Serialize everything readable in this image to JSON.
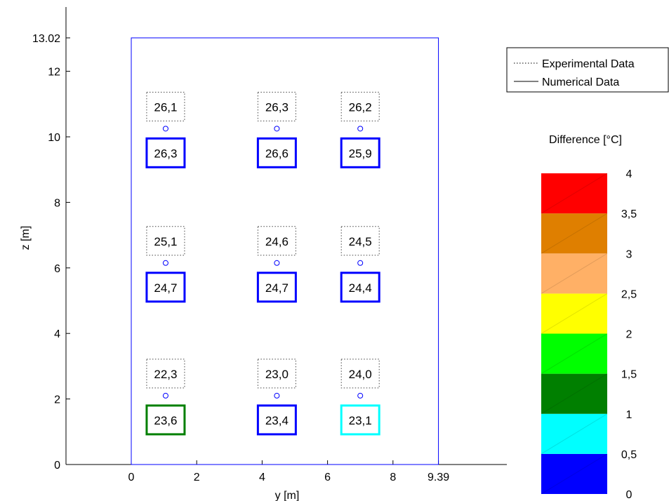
{
  "chart_data": {
    "type": "scatter",
    "xlabel": "y [m]",
    "ylabel": "z [m]",
    "xlim": [
      -2,
      11.5
    ],
    "ylim": [
      0,
      13.8
    ],
    "x_ticks": [
      "0",
      "2",
      "4",
      "6",
      "8",
      "9.39"
    ],
    "x_tick_values": [
      0,
      2,
      4,
      6,
      8,
      9.39
    ],
    "y_ticks": [
      "0",
      "2",
      "4",
      "6",
      "8",
      "10",
      "12",
      "13.02"
    ],
    "y_tick_values": [
      0,
      2,
      4,
      6,
      8,
      10,
      12,
      13.02
    ],
    "room_outline": {
      "y": [
        0,
        9.39
      ],
      "z": [
        0,
        13.02
      ]
    },
    "probes": [
      {
        "y": 1.05,
        "z": 10.25,
        "experimental": "26,1",
        "numerical": "26,3",
        "difference": 0.2
      },
      {
        "y": 4.45,
        "z": 10.25,
        "experimental": "26,3",
        "numerical": "26,6",
        "difference": 0.3
      },
      {
        "y": 7.0,
        "z": 10.25,
        "experimental": "26,2",
        "numerical": "25,9",
        "difference": 0.3
      },
      {
        "y": 1.05,
        "z": 6.15,
        "experimental": "25,1",
        "numerical": "24,7",
        "difference": 0.4
      },
      {
        "y": 4.45,
        "z": 6.15,
        "experimental": "24,6",
        "numerical": "24,7",
        "difference": 0.1
      },
      {
        "y": 7.0,
        "z": 6.15,
        "experimental": "24,5",
        "numerical": "24,4",
        "difference": 0.1
      },
      {
        "y": 1.05,
        "z": 2.1,
        "experimental": "22,3",
        "numerical": "23,6",
        "difference": 1.3
      },
      {
        "y": 4.45,
        "z": 2.1,
        "experimental": "23,0",
        "numerical": "23,4",
        "difference": 0.4
      },
      {
        "y": 7.0,
        "z": 2.1,
        "experimental": "24,0",
        "numerical": "23,1",
        "difference": 0.9
      }
    ],
    "legend": {
      "placement": "top-right",
      "entries": [
        "Experimental Data",
        "Numerical Data"
      ]
    },
    "colorbar": {
      "title": "Difference [°C]",
      "tick_labels": [
        "0",
        "0,5",
        "1",
        "1,5",
        "2",
        "2,5",
        "3",
        "3,5",
        "4"
      ],
      "bands": [
        {
          "from": 0,
          "to": 0.5,
          "color": "#0000ff"
        },
        {
          "from": 0.5,
          "to": 1,
          "color": "#00ffff"
        },
        {
          "from": 1,
          "to": 1.5,
          "color": "#007f00"
        },
        {
          "from": 1.5,
          "to": 2,
          "color": "#00ff00"
        },
        {
          "from": 2,
          "to": 2.5,
          "color": "#ffff00"
        },
        {
          "from": 2.5,
          "to": 3,
          "color": "#ffb066"
        },
        {
          "from": 3,
          "to": 3.5,
          "color": "#df7f00"
        },
        {
          "from": 3.5,
          "to": 4,
          "color": "#ff0000"
        }
      ]
    },
    "colors": {
      "room_outline": "#0000ff",
      "probe_marker": "#0000ff"
    }
  }
}
